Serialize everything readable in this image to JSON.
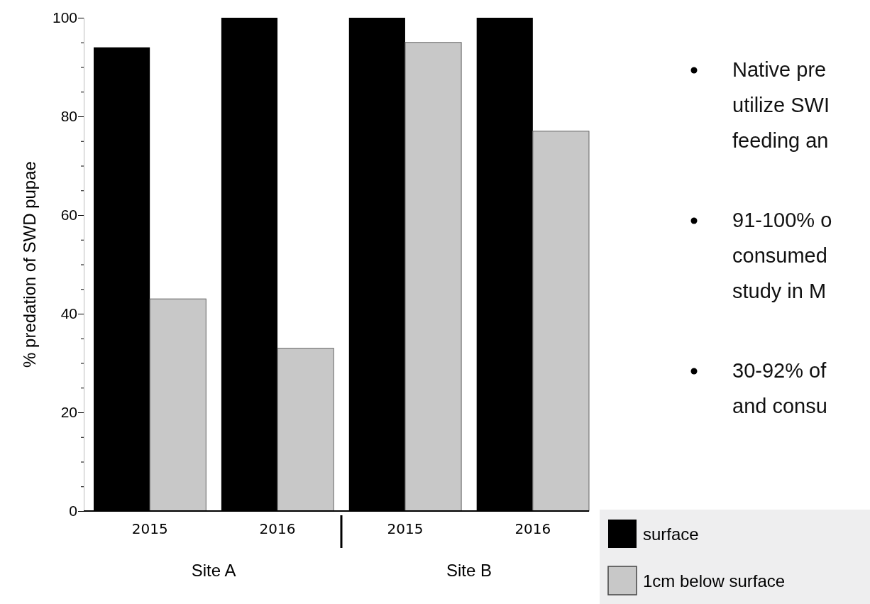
{
  "chart_data": {
    "type": "bar",
    "ylabel": "% predation of SWD pupae",
    "categories": [
      "2015",
      "2016",
      "2015",
      "2016"
    ],
    "series": [
      {
        "name": "surface",
        "color": "#000000",
        "values": [
          94,
          100,
          100,
          100
        ]
      },
      {
        "name": "1cm below surface",
        "color": "#c8c8c8",
        "values": [
          43,
          33,
          95,
          77
        ]
      }
    ],
    "ylim": [
      0,
      100
    ],
    "yticks": [
      0,
      {
        "value": 5,
        "label": null
      },
      {
        "value": 10,
        "label": null
      },
      {
        "value": 15,
        "label": null
      },
      20,
      {
        "value": 25,
        "label": null
      },
      {
        "value": 30,
        "label": null
      },
      {
        "value": 35,
        "label": null
      },
      40,
      {
        "value": 45,
        "label": null
      },
      {
        "value": 50,
        "label": null
      },
      {
        "value": 55,
        "label": null
      },
      60,
      {
        "value": 65,
        "label": null
      },
      {
        "value": 70,
        "label": null
      },
      {
        "value": 75,
        "label": null
      },
      80,
      {
        "value": 85,
        "label": null
      },
      {
        "value": 90,
        "label": null
      },
      {
        "value": 95,
        "label": null
      },
      100
    ],
    "legend": "bottom right",
    "annotations": [
      "Site A",
      "Site B",
      "Native pre\nutilize SWI\nfeeding an",
      "91-100% o\nconsumed\nstudy in M",
      "30-92% of\nand consu"
    ]
  }
}
